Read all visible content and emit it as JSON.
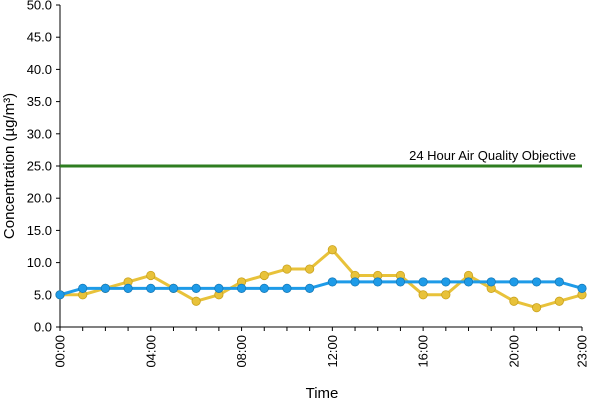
{
  "chart_data": {
    "type": "line",
    "xlabel": "Time",
    "ylabel": "Concentration (µg/m³)",
    "ylim": [
      0,
      50
    ],
    "y_ticks": [
      "0.0",
      "5.0",
      "10.0",
      "15.0",
      "20.0",
      "25.0",
      "30.0",
      "35.0",
      "40.0",
      "45.0",
      "50.0"
    ],
    "x_ticks": [
      {
        "hour": 0,
        "label": "00:00"
      },
      {
        "hour": 4,
        "label": "04:00"
      },
      {
        "hour": 8,
        "label": "08:00"
      },
      {
        "hour": 12,
        "label": "12:00"
      },
      {
        "hour": 16,
        "label": "16:00"
      },
      {
        "hour": 20,
        "label": "20:00"
      },
      {
        "hour": 23,
        "label": "23:00"
      }
    ],
    "x": [
      0,
      1,
      2,
      3,
      4,
      5,
      6,
      7,
      8,
      9,
      10,
      11,
      12,
      13,
      14,
      15,
      16,
      17,
      18,
      19,
      20,
      21,
      22,
      23
    ],
    "grid": false,
    "series": [
      {
        "color": "#E8C23A",
        "values": [
          5,
          5,
          6,
          7,
          8,
          6,
          4,
          5,
          7,
          8,
          9,
          9,
          12,
          8,
          8,
          8,
          5,
          5,
          8,
          6,
          4,
          3,
          4,
          5
        ]
      },
      {
        "color": "#1E9BE8",
        "values": [
          5,
          6,
          6,
          6,
          6,
          6,
          6,
          6,
          6,
          6,
          6,
          6,
          7,
          7,
          7,
          7,
          7,
          7,
          7,
          7,
          7,
          7,
          7,
          6
        ]
      }
    ],
    "reference_line": {
      "value": 25,
      "label": "24 Hour Air Quality Objective",
      "color": "#2E7D20"
    }
  }
}
